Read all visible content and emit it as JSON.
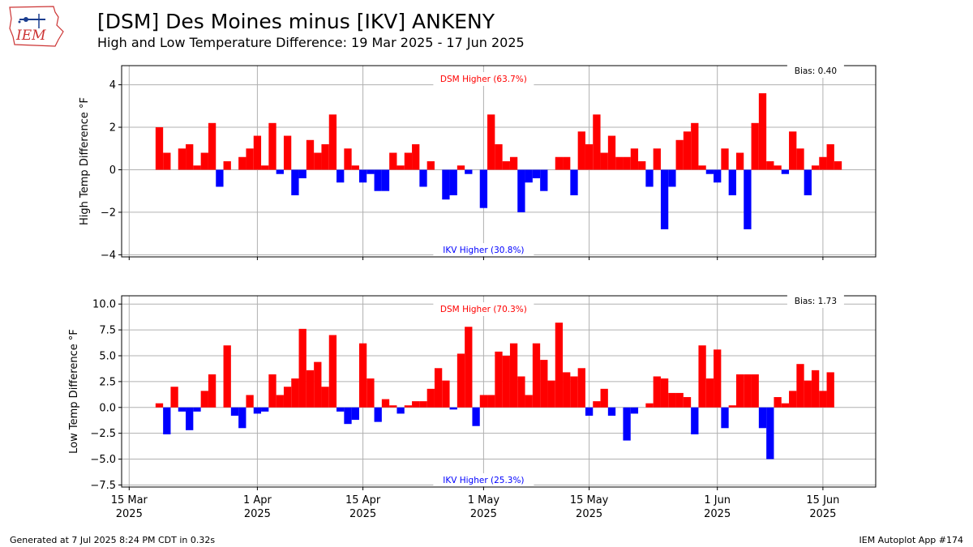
{
  "header": {
    "logo_text": "IEM",
    "title": "[DSM] Des Moines minus [IKV] ANKENY",
    "subtitle": "High and Low Temperature Difference: 19 Mar 2025 - 17 Jun 2025"
  },
  "footer": {
    "generated": "Generated at 7 Jul 2025 8:24 PM CDT in 0.32s",
    "app": "IEM Autoplot App #174"
  },
  "colors": {
    "positive": "#ff0000",
    "negative": "#0000ff",
    "grid": "#b0b0b0"
  },
  "chart_data": {
    "type": "bar",
    "start_date": "2025-03-19",
    "x_ticks": [
      {
        "day": -4,
        "line1": "15 Mar",
        "line2": "2025"
      },
      {
        "day": 13,
        "line1": "1 Apr",
        "line2": "2025"
      },
      {
        "day": 27,
        "line1": "15 Apr",
        "line2": "2025"
      },
      {
        "day": 43,
        "line1": "1 May",
        "line2": "2025"
      },
      {
        "day": 57,
        "line1": "15 May",
        "line2": "2025"
      },
      {
        "day": 74,
        "line1": "1 Jun",
        "line2": "2025"
      },
      {
        "day": 88,
        "line1": "15 Jun",
        "line2": "2025"
      }
    ],
    "xlim": [
      -5,
      95
    ],
    "panels": [
      {
        "name": "high",
        "ylabel": "High Temp Difference °F",
        "ylim": [
          -4.1,
          4.9
        ],
        "yticks": [
          -4,
          -2,
          0,
          2,
          4
        ],
        "ytick_labels": [
          "−4",
          "−2",
          "0",
          "2",
          "4"
        ],
        "bias_label": "Bias: 0.40",
        "pos_label": "DSM Higher (63.7%)",
        "neg_label": "IKV Higher (30.8%)",
        "values": [
          2.0,
          0.8,
          0.0,
          1.0,
          1.2,
          0.2,
          0.8,
          2.2,
          -0.8,
          0.4,
          0.0,
          0.6,
          1.0,
          1.6,
          0.2,
          2.2,
          -0.2,
          1.6,
          -1.2,
          -0.4,
          1.4,
          0.8,
          1.2,
          2.6,
          -0.6,
          1.0,
          0.2,
          -0.6,
          -0.2,
          -1.0,
          -1.0,
          0.8,
          0.2,
          0.8,
          1.2,
          -0.8,
          0.4,
          0.0,
          -1.4,
          -1.2,
          0.2,
          -0.2,
          0.0,
          -1.8,
          2.6,
          1.2,
          0.4,
          0.6,
          -2.0,
          -0.6,
          -0.4,
          -1.0,
          0.0,
          0.6,
          0.6,
          -1.2,
          1.8,
          1.2,
          2.6,
          0.8,
          1.6,
          0.6,
          0.6,
          1.0,
          0.4,
          -0.8,
          1.0,
          -2.8,
          -0.8,
          1.4,
          1.8,
          2.2,
          0.2,
          -0.2,
          -0.6,
          1.0,
          -1.2,
          0.8,
          -2.8,
          2.2,
          3.6,
          0.4,
          0.2,
          -0.2,
          1.8,
          1.0,
          -1.2,
          0.2,
          0.6,
          1.2,
          0.4
        ]
      },
      {
        "name": "low",
        "ylabel": "Low Temp Difference °F",
        "ylim": [
          -7.7,
          10.8
        ],
        "yticks": [
          -7.5,
          -5.0,
          -2.5,
          0.0,
          2.5,
          5.0,
          7.5,
          10.0
        ],
        "ytick_labels": [
          "−7.5",
          "−5.0",
          "−2.5",
          "0.0",
          "2.5",
          "5.0",
          "7.5",
          "10.0"
        ],
        "bias_label": "Bias: 1.73",
        "pos_label": "DSM Higher (70.3%)",
        "neg_label": "IKV Higher (25.3%)",
        "values": [
          0.4,
          -2.6,
          2.0,
          -0.4,
          -2.2,
          -0.4,
          1.6,
          3.2,
          0.0,
          6.0,
          -0.8,
          -2.0,
          1.2,
          -0.6,
          -0.4,
          3.2,
          1.2,
          2.0,
          2.8,
          7.6,
          3.6,
          4.4,
          2.0,
          7.0,
          -0.4,
          -1.6,
          -1.2,
          6.2,
          2.8,
          -1.4,
          0.8,
          0.2,
          -0.6,
          0.2,
          0.6,
          0.6,
          1.8,
          3.8,
          2.6,
          -0.2,
          5.2,
          7.8,
          -1.8,
          1.2,
          1.2,
          5.4,
          5.0,
          6.2,
          3.0,
          1.2,
          6.2,
          4.6,
          2.6,
          8.2,
          3.4,
          3.0,
          3.8,
          -0.8,
          0.6,
          1.8,
          -0.8,
          0.0,
          -3.2,
          -0.6,
          0.0,
          0.4,
          3.0,
          2.8,
          1.4,
          1.4,
          1.0,
          -2.6,
          6.0,
          2.8,
          5.6,
          -2.0,
          0.2,
          3.2,
          3.2,
          3.2,
          -2.0,
          -5.0,
          1.0,
          0.4,
          1.6,
          4.2,
          2.6,
          3.6,
          1.6,
          3.4
        ]
      }
    ]
  }
}
